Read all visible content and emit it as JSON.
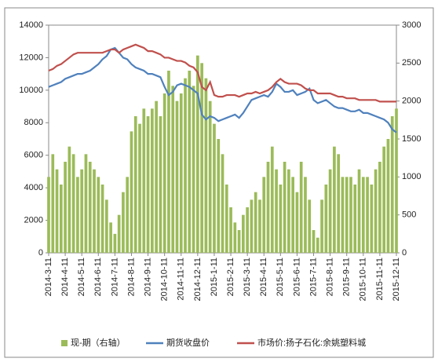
{
  "chart_data": {
    "type": "bar-line",
    "categories": [
      "2014-3-11",
      null,
      null,
      null,
      "2014-4-11",
      null,
      null,
      null,
      "2014-5-11",
      null,
      null,
      null,
      "2014-6-11",
      null,
      null,
      null,
      "2014-7-11",
      null,
      null,
      null,
      "2014-8-11",
      null,
      null,
      null,
      "2014-9-11",
      null,
      null,
      null,
      "2014-10-11",
      null,
      null,
      null,
      "2014-11-11",
      null,
      null,
      null,
      "2014-12-11",
      null,
      null,
      null,
      "2015-1-11",
      null,
      null,
      null,
      "2015-2-11",
      null,
      null,
      null,
      "2015-3-11",
      null,
      null,
      null,
      "2015-4-11",
      null,
      null,
      null,
      "2015-5-11",
      null,
      null,
      null,
      "2015-6-11",
      null,
      null,
      null,
      "2015-7-11",
      null,
      null,
      null,
      "2015-8-11",
      null,
      null,
      null,
      "2015-9-11",
      null,
      null,
      null,
      "2015-10-11",
      null,
      null,
      null,
      "2015-11-11",
      null,
      null,
      null,
      "2015-12-11"
    ],
    "series": [
      {
        "name": "现-期（右轴）",
        "type": "bar",
        "axis": "y2",
        "color": "#9bbb59",
        "values": [
          1000,
          1300,
          1100,
          900,
          1200,
          1400,
          1300,
          1000,
          1100,
          1300,
          1200,
          1100,
          1000,
          900,
          700,
          400,
          250,
          500,
          800,
          1000,
          1600,
          1800,
          1700,
          1900,
          1800,
          1900,
          2000,
          1800,
          2100,
          2400,
          2200,
          2000,
          2100,
          2300,
          2400,
          2200,
          2600,
          2500,
          2300,
          2000,
          1700,
          1500,
          1300,
          900,
          600,
          400,
          300,
          500,
          600,
          700,
          800,
          700,
          1000,
          1200,
          1400,
          1100,
          900,
          1200,
          1100,
          1000,
          800,
          1200,
          1000,
          700,
          300,
          200,
          700,
          900,
          1100,
          1400,
          1300,
          1000,
          1000,
          1000,
          900,
          1100,
          1000,
          1000,
          900,
          1100,
          1200,
          1400,
          1500,
          1800,
          1900
        ]
      },
      {
        "name": "期货收盘价",
        "type": "line",
        "axis": "y",
        "color": "#4f81bd",
        "values": [
          10200,
          10300,
          10400,
          10500,
          10700,
          10800,
          10900,
          11000,
          11000,
          11100,
          11200,
          11400,
          11600,
          11900,
          12100,
          12500,
          12600,
          12300,
          12000,
          11900,
          11600,
          11400,
          11300,
          11200,
          11000,
          11000,
          10900,
          10800,
          10200,
          9700,
          9900,
          10300,
          10400,
          10300,
          10200,
          10000,
          9800,
          8500,
          8200,
          8400,
          8300,
          8100,
          8200,
          8300,
          8400,
          8500,
          8300,
          8600,
          9000,
          9400,
          9500,
          9600,
          9700,
          9600,
          9900,
          10400,
          10200,
          9900,
          9900,
          10000,
          9700,
          9800,
          9900,
          10100,
          9400,
          9200,
          9300,
          9400,
          9200,
          9000,
          8900,
          8900,
          8800,
          8700,
          8700,
          8800,
          8600,
          8600,
          8500,
          8400,
          8300,
          8200,
          8000,
          7600,
          7400
        ]
      },
      {
        "name": "市场价:扬子石化:余姚塑料城",
        "type": "line",
        "axis": "y",
        "color": "#c0504d",
        "values": [
          11200,
          11300,
          11500,
          11600,
          11800,
          12000,
          12200,
          12300,
          12300,
          12300,
          12300,
          12300,
          12300,
          12300,
          12400,
          12500,
          12500,
          12300,
          12500,
          12600,
          12700,
          12800,
          12700,
          12600,
          12400,
          12400,
          12300,
          12200,
          12000,
          12000,
          11900,
          11800,
          11800,
          11700,
          11500,
          11400,
          11100,
          10200,
          10000,
          10500,
          9700,
          9600,
          9600,
          9700,
          9700,
          9700,
          9600,
          9700,
          9800,
          9800,
          9900,
          9800,
          9900,
          10000,
          10200,
          10500,
          10700,
          10500,
          10400,
          10400,
          10400,
          10300,
          10100,
          10000,
          10000,
          9800,
          9800,
          9800,
          9800,
          9700,
          9600,
          9600,
          9500,
          9500,
          9500,
          9400,
          9400,
          9400,
          9400,
          9400,
          9300,
          9300,
          9300,
          9300,
          9300
        ]
      }
    ],
    "ylim": [
      0,
      14000
    ],
    "yticks": [
      0,
      2000,
      4000,
      6000,
      8000,
      10000,
      12000,
      14000
    ],
    "y2lim": [
      0,
      3000
    ],
    "y2ticks": [
      0,
      500,
      1000,
      1500,
      2000,
      2500,
      3000
    ],
    "legend": "bottom"
  }
}
